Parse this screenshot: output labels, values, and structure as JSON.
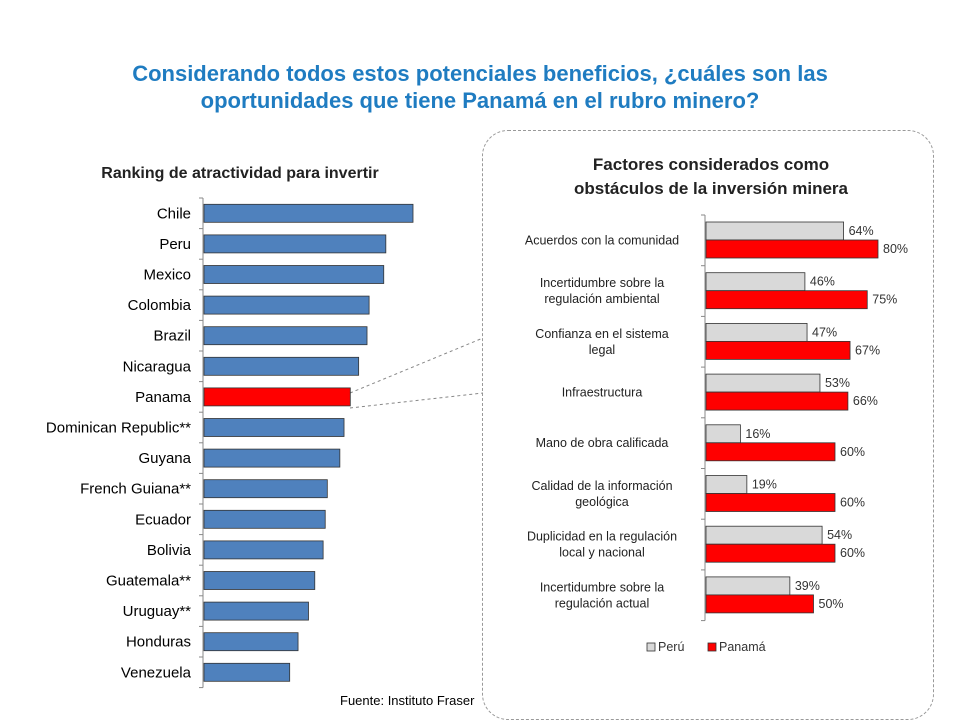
{
  "title_line1": "Considerando todos estos potenciales beneficios, ¿cuáles son las",
  "title_line2": "oportunidades que tiene Panamá en el rubro minero?",
  "source": "Fuente: Instituto Fraser",
  "colors": {
    "title": "#1F7CC1",
    "bar_blue": "#4F81BD",
    "highlight_red": "#FF0000",
    "peru_gray": "#D9D9D9"
  },
  "chart_data": [
    {
      "type": "bar",
      "orientation": "horizontal",
      "title": "Ranking de atractividad para invertir",
      "categories": [
        "Chile",
        "Peru",
        "Mexico",
        "Colombia",
        "Brazil",
        "Nicaragua",
        "Panama",
        "Dominican Republic**",
        "Guyana",
        "French Guiana**",
        "Ecuador",
        "Bolivia",
        "Guatemala**",
        "Uruguay**",
        "Honduras",
        "Venezuela"
      ],
      "values": [
        100,
        87,
        86,
        79,
        78,
        74,
        70,
        67,
        65,
        59,
        58,
        57,
        53,
        50,
        45,
        41
      ],
      "highlight": "Panama",
      "note": "values are approximate relative bar lengths; no axis printed"
    },
    {
      "type": "bar",
      "orientation": "horizontal",
      "title_line1": "Factores considerados como",
      "title_line2": "obstáculos de la inversión minera",
      "categories": [
        [
          "Acuerdos con la comunidad"
        ],
        [
          "Incertidumbre sobre la",
          "regulación ambiental"
        ],
        [
          "Confianza en el sistema",
          "legal"
        ],
        [
          "Infraestructura"
        ],
        [
          "Mano de obra calificada"
        ],
        [
          "Calidad de la información",
          "geológica"
        ],
        [
          "Duplicidad en la regulación",
          "local y nacional"
        ],
        [
          "Incertidumbre sobre la",
          "regulación actual"
        ]
      ],
      "series": [
        {
          "name": "Perú",
          "values": [
            64,
            46,
            47,
            53,
            16,
            19,
            54,
            39
          ],
          "labels": [
            "64%",
            "46%",
            "47%",
            "53%",
            "16%",
            "19%",
            "54%",
            "39%"
          ]
        },
        {
          "name": "Panamá",
          "values": [
            80,
            75,
            67,
            66,
            60,
            60,
            60,
            50
          ],
          "labels": [
            "80%",
            "75%",
            "67%",
            "66%",
            "60%",
            "60%",
            "60%",
            "50%"
          ]
        }
      ],
      "legend": "bottom"
    }
  ]
}
